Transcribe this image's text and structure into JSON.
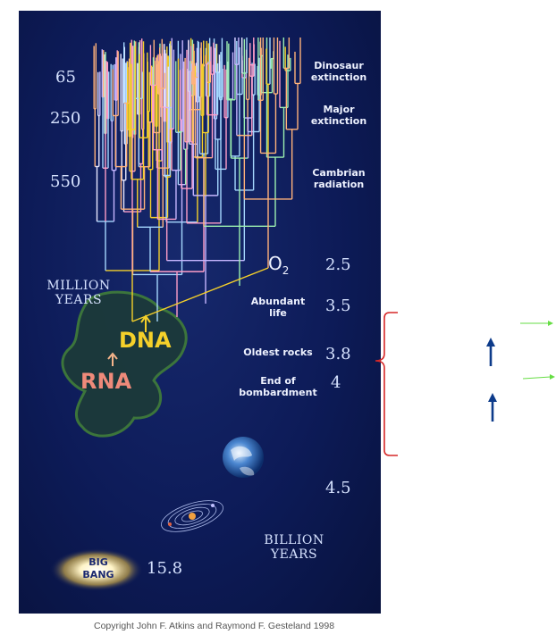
{
  "milestones": {
    "ma_65": "65",
    "ma_250": "250",
    "ma_550": "550",
    "dinosaur_extinction": "Dinosaur extinction",
    "major_extinction": "Major extinction",
    "cambrian_radiation": "Cambrian radiation",
    "million_years": "MILLION YEARS",
    "o2": "O",
    "o2_sub": "2",
    "ga_2_5": "2.5",
    "abundant_life": "Abundant life",
    "ga_3_5": "3.5",
    "oldest_rocks": "Oldest rocks",
    "ga_3_8": "3.8",
    "end_of_bombardment": "End of bombardment",
    "ga_4": "4",
    "ga_4_5": "4.5",
    "billion_years": "BILLION YEARS",
    "big_bang": "BIG BANG",
    "ga_15_8": "15.8"
  },
  "molecules": {
    "dna": "DNA",
    "rna": "RNA"
  },
  "colors": {
    "panel": "#0d1b58",
    "dna": "#f5d02a",
    "rna": "#ef8a7a",
    "bracket": "#d62828",
    "green_arrow": "#66dd44",
    "blue_arrow": "#0d3b8a"
  },
  "copyright": "Copyright John F. Atkins and Raymond F. Gesteland 1998"
}
